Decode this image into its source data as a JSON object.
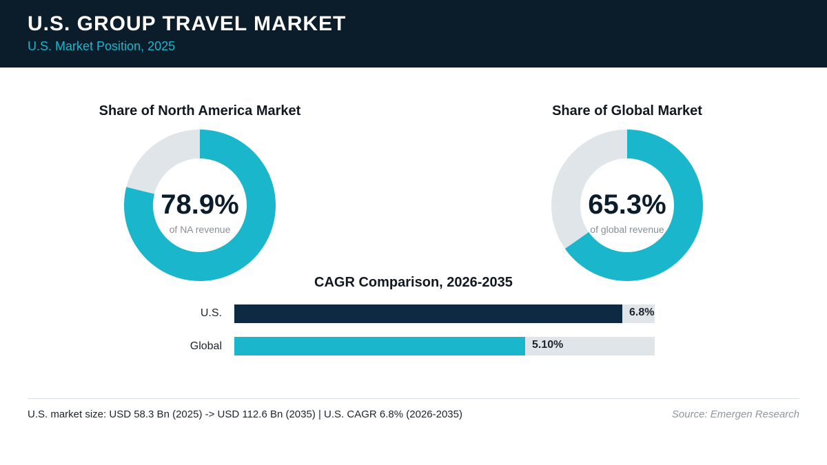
{
  "header": {
    "title": "U.S. GROUP TRAVEL MARKET",
    "subtitle": "U.S. Market Position, 2025"
  },
  "colors": {
    "header_bg": "#0b1c2b",
    "accent": "#1ab7cc",
    "navy": "#0e2a42",
    "track": "#e0e5ea"
  },
  "chart_data": [
    {
      "type": "pie",
      "title": "Share of North America Market",
      "center_value": "78.9%",
      "center_caption": "of NA revenue",
      "values": [
        78.9,
        21.1
      ]
    },
    {
      "type": "pie",
      "title": "Share of Global Market",
      "center_value": "65.3%",
      "center_caption": "of global revenue",
      "values": [
        65.3,
        34.7
      ]
    },
    {
      "type": "bar",
      "orientation": "horizontal",
      "title": "CAGR Comparison, 2026-2035",
      "categories": [
        "U.S.",
        "Global"
      ],
      "values": [
        6.8,
        5.1
      ],
      "value_labels": [
        "6.8%",
        "5.10%"
      ],
      "xlim": [
        0,
        7.37
      ]
    }
  ],
  "footer": {
    "note": "U.S. market size: USD 58.3 Bn (2025) -> USD 112.6 Bn (2035)  |  U.S. CAGR 6.8% (2026-2035)",
    "source": "Source: Emergen Research"
  }
}
